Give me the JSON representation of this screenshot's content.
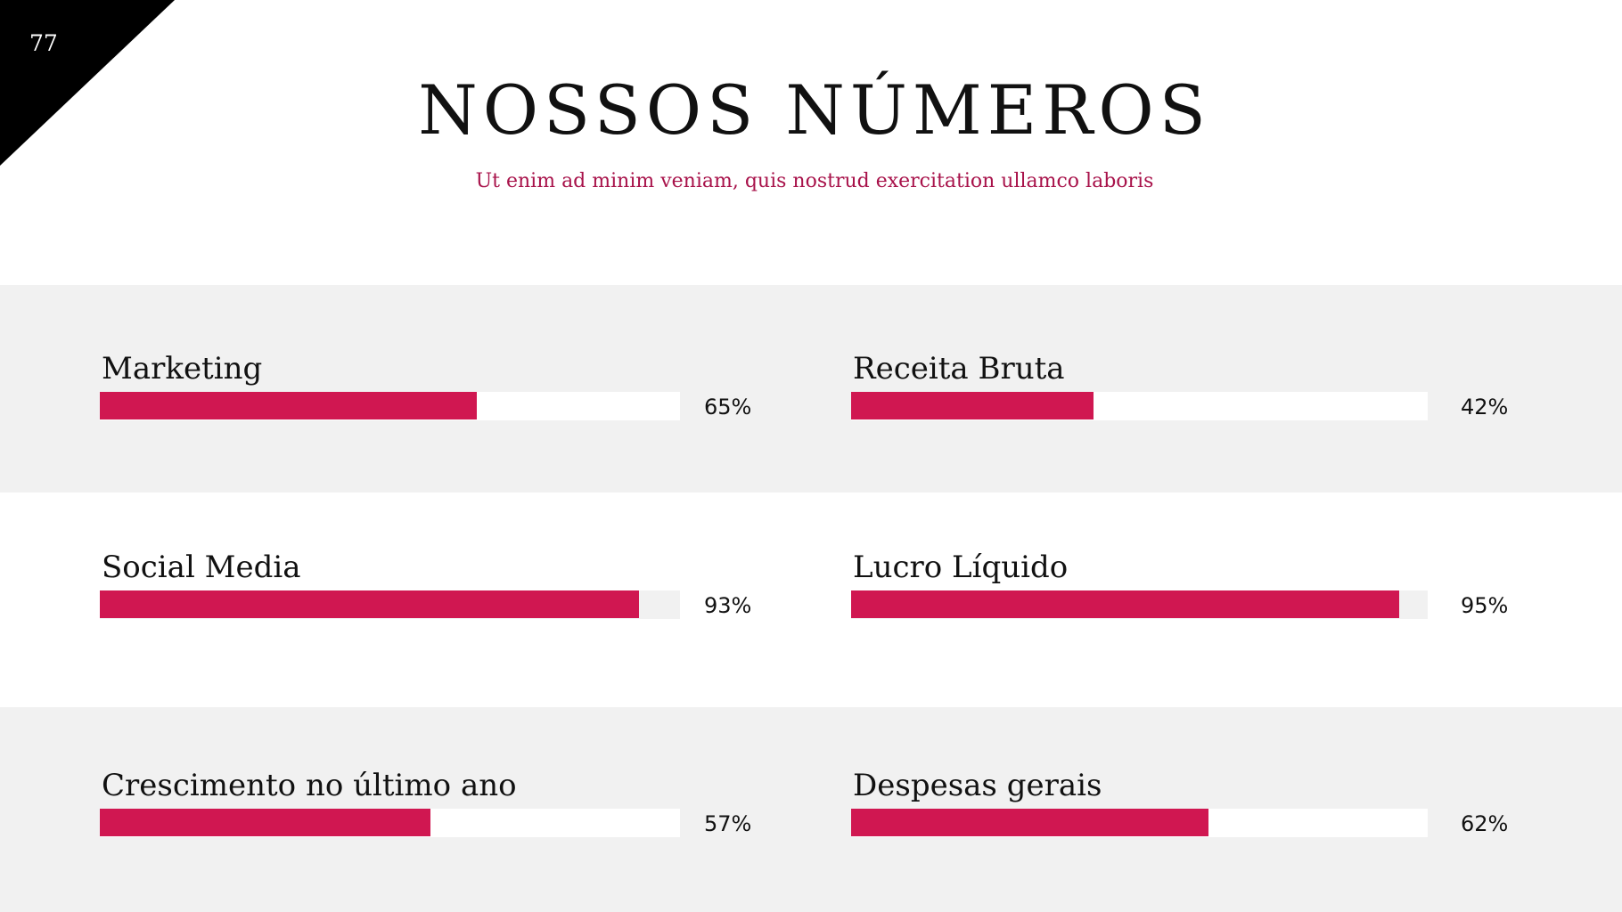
{
  "slide": {
    "page_number": "77",
    "title": "NOSSOS NÚMEROS",
    "subtitle": "Ut enim ad minim veniam, quis nostrud exercitation ullamco laboris"
  },
  "colors": {
    "accent": "#d01751",
    "subtitle": "#a8124a",
    "band_gray": "#f1f1f1",
    "corner": "#000000"
  },
  "chart_data": {
    "type": "bar",
    "orientation": "horizontal",
    "xlim": [
      0,
      100
    ],
    "unit": "%",
    "items": [
      {
        "label": "Marketing",
        "value": 65,
        "display": "65%"
      },
      {
        "label": "Receita Bruta",
        "value": 42,
        "display": "42%"
      },
      {
        "label": "Social Media",
        "value": 93,
        "display": "93%"
      },
      {
        "label": "Lucro Líquido",
        "value": 95,
        "display": "95%"
      },
      {
        "label": "Crescimento no último ano",
        "value": 57,
        "display": "57%"
      },
      {
        "label": "Despesas gerais",
        "value": 62,
        "display": "62%"
      }
    ]
  }
}
